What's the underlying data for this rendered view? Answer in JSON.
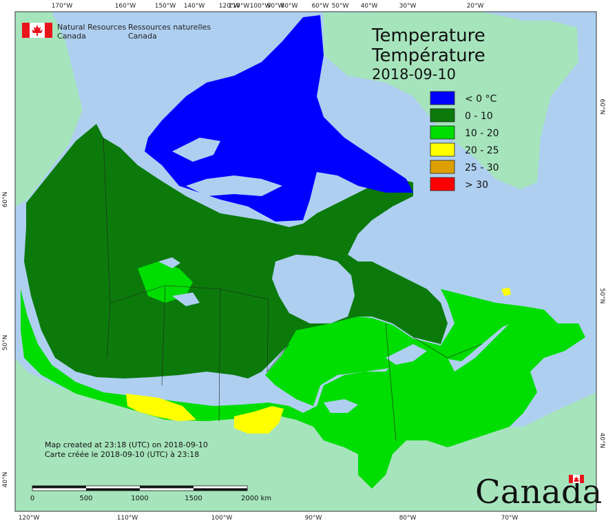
{
  "map": {
    "title_en": "Temperature",
    "title_fr": "Température",
    "date": "2018-09-10",
    "agency": {
      "en_line1": "Natural Resources",
      "en_line2": "Canada",
      "fr_line1": "Ressources naturelles",
      "fr_line2": "Canada"
    },
    "legend": [
      {
        "label": "< 0 °C",
        "color": "#0000ff"
      },
      {
        "label": "0 - 10",
        "color": "#0b7a0b"
      },
      {
        "label": "10 - 20",
        "color": "#00dd00"
      },
      {
        "label": "20 - 25",
        "color": "#ffff00"
      },
      {
        "label": "25 - 30",
        "color": "#dda000"
      },
      {
        "label": "> 30",
        "color": "#ff0000"
      }
    ],
    "credit_en": "Map created at 23:18 (UTC) on 2018-09-10",
    "credit_fr": "Carte créée le 2018-09-10 (UTC) à 23:18",
    "scale_labels": [
      "0",
      "500",
      "1000",
      "1500",
      "2000  km"
    ],
    "wordmark": "Canada",
    "top_ticks": [
      "170°W",
      "160°W",
      "150°W",
      "140°W",
      "120°W",
      "110°W",
      "100°W",
      "90°W",
      "80°W",
      "60°W",
      "50°W",
      "40°W",
      "30°W",
      "20°W"
    ],
    "bottom_ticks": [
      "120°W",
      "110°W",
      "100°W",
      "90°W",
      "80°W",
      "70°W"
    ],
    "left_ticks": [
      "60°N",
      "50°N",
      "40°N"
    ],
    "right_ticks": [
      "60°N",
      "50°N",
      "40°N"
    ],
    "colors": {
      "ocean": "#aecff0",
      "land_foreign": "#a6e4bc",
      "lake": "#aecff0"
    }
  }
}
